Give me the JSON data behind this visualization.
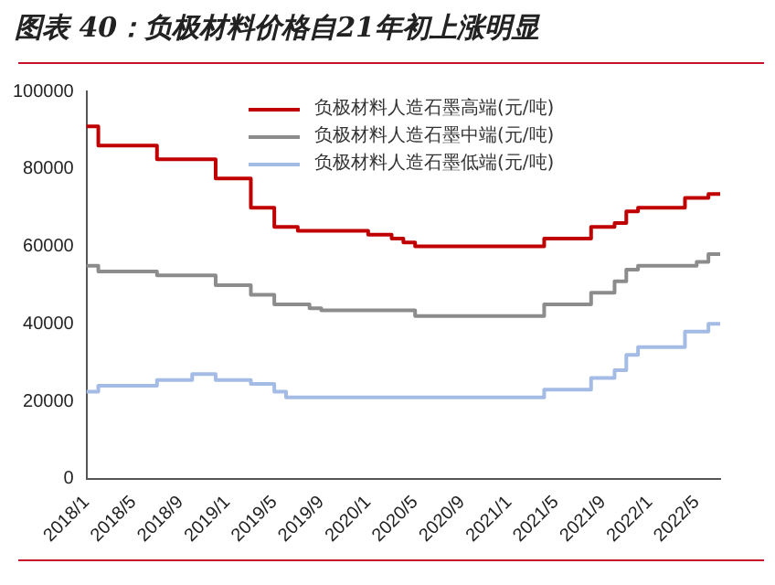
{
  "chart_data": {
    "type": "step",
    "title": "图表 40：负极材料价格自21年初上涨明显",
    "categories": [
      "2018/1",
      null,
      null,
      null,
      "2018/5",
      null,
      null,
      null,
      "2018/9",
      null,
      null,
      null,
      "2019/1",
      null,
      null,
      null,
      "2019/5",
      null,
      null,
      null,
      "2019/9",
      null,
      null,
      null,
      "2020/1",
      null,
      null,
      null,
      "2020/5",
      null,
      null,
      null,
      "2020/9",
      null,
      null,
      null,
      "2021/1",
      null,
      null,
      null,
      "2021/5",
      null,
      null,
      null,
      "2021/9",
      null,
      null,
      null,
      "2022/1",
      null,
      null,
      null,
      "2022/5",
      null,
      null
    ],
    "series": [
      {
        "name": "负极材料人造石墨高端(元/吨)",
        "color": "#c00000",
        "values": [
          91000,
          86000,
          86000,
          86000,
          86000,
          86000,
          82500,
          82500,
          82500,
          82500,
          82500,
          77500,
          77500,
          77500,
          70000,
          70000,
          65000,
          65000,
          64000,
          64000,
          64000,
          64000,
          64000,
          64000,
          63000,
          63000,
          62000,
          61000,
          60000,
          60000,
          60000,
          60000,
          60000,
          60000,
          60000,
          60000,
          60000,
          60000,
          60000,
          62000,
          62000,
          62000,
          62000,
          65000,
          65000,
          66000,
          69000,
          70000,
          70000,
          70000,
          70000,
          72500,
          72500,
          73500,
          73500
        ]
      },
      {
        "name": "负极材料人造石墨中端(元/吨)",
        "color": "#8c8c8c",
        "values": [
          55000,
          53500,
          53500,
          53500,
          53500,
          53500,
          52500,
          52500,
          52500,
          52500,
          52500,
          50000,
          50000,
          50000,
          47500,
          47500,
          45000,
          45000,
          45000,
          44000,
          43500,
          43500,
          43500,
          43500,
          43500,
          43500,
          43500,
          43500,
          42000,
          42000,
          42000,
          42000,
          42000,
          42000,
          42000,
          42000,
          42000,
          42000,
          42000,
          45000,
          45000,
          45000,
          45000,
          48000,
          48000,
          51000,
          54000,
          55000,
          55000,
          55000,
          55000,
          55000,
          56000,
          58000,
          58000
        ]
      },
      {
        "name": "负极材料人造石墨低端(元/吨)",
        "color": "#a4bbe6",
        "values": [
          22500,
          24000,
          24000,
          24000,
          24000,
          24000,
          25500,
          25500,
          25500,
          27000,
          27000,
          25500,
          25500,
          25500,
          24500,
          24500,
          22500,
          21000,
          21000,
          21000,
          21000,
          21000,
          21000,
          21000,
          21000,
          21000,
          21000,
          21000,
          21000,
          21000,
          21000,
          21000,
          21000,
          21000,
          21000,
          21000,
          21000,
          21000,
          21000,
          23000,
          23000,
          23000,
          23000,
          26000,
          26000,
          28000,
          32000,
          34000,
          34000,
          34000,
          34000,
          38000,
          38000,
          40000,
          40000
        ]
      }
    ],
    "ylim": [
      0,
      100000
    ],
    "yticks": [
      0,
      20000,
      40000,
      60000,
      80000,
      100000
    ],
    "legend": "top"
  }
}
